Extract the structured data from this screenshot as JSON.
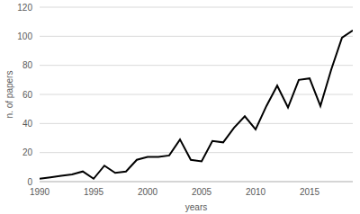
{
  "chart_data": {
    "type": "line",
    "x_label": "years",
    "y_label": "n. of papers",
    "x": [
      1990,
      1991,
      1992,
      1993,
      1994,
      1995,
      1996,
      1997,
      1998,
      1999,
      2000,
      2001,
      2002,
      2003,
      2004,
      2005,
      2006,
      2007,
      2008,
      2009,
      2010,
      2011,
      2012,
      2013,
      2014,
      2015,
      2016,
      2017,
      2018,
      2019
    ],
    "values": [
      2,
      3,
      4,
      5,
      7,
      2,
      11,
      6,
      7,
      15,
      17,
      17,
      18,
      29,
      15,
      14,
      28,
      27,
      37,
      45,
      36,
      52,
      66,
      51,
      70,
      71,
      52,
      77,
      99,
      104
    ],
    "color": "#000000",
    "xlim": [
      1990,
      2019
    ],
    "xticks": [
      1990,
      1995,
      2000,
      2005,
      2010,
      2015
    ],
    "ylim": [
      0,
      120
    ],
    "yticks": [
      0,
      20,
      40,
      60,
      80,
      100,
      120
    ],
    "grid": true
  }
}
